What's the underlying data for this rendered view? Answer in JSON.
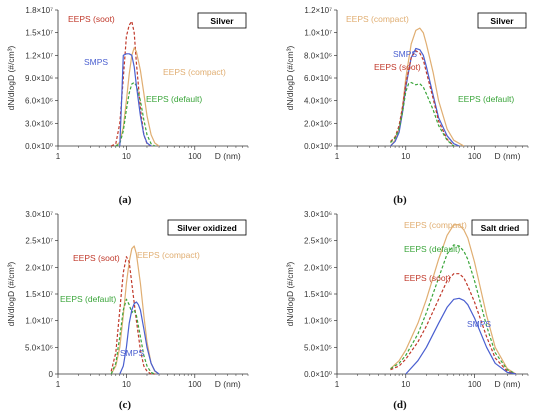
{
  "figure": {
    "colors": {
      "EEPS (soot)": "#c0392b",
      "EEPS (compact)": "#e0ae72",
      "EEPS (default)": "#3aa53a",
      "SMPS": "#4a5fd0"
    },
    "axis_color": "#333333"
  },
  "chart_data": [
    {
      "id": "a",
      "type": "line",
      "panel_label": "(a)",
      "title": "Silver",
      "xlabel": "D (nm)",
      "ylabel": "dN/dlogD (#/cm³)",
      "xscale": "log",
      "xlim": [
        1,
        600
      ],
      "ylim": [
        0,
        18000000
      ],
      "xticks": [
        {
          "v": 1,
          "label": "1"
        },
        {
          "v": 10,
          "label": "10"
        },
        {
          "v": 100,
          "label": "100"
        }
      ],
      "yticks": [
        {
          "v": 0,
          "label": "0.0×10⁰"
        },
        {
          "v": 3000000,
          "label": "3.0×10⁶"
        },
        {
          "v": 6000000,
          "label": "6.0×10⁶"
        },
        {
          "v": 9000000,
          "label": "9.0×10⁶"
        },
        {
          "v": 12000000,
          "label": "1.2×10⁷"
        },
        {
          "v": 15000000,
          "label": "1.5×10⁷"
        },
        {
          "v": 18000000,
          "label": "1.8×10⁷"
        }
      ],
      "series": [
        {
          "name": "EEPS (soot)",
          "dash": true,
          "x": [
            6,
            7,
            8,
            9,
            10,
            11,
            12,
            13,
            14,
            16,
            18,
            20,
            23
          ],
          "y": [
            0,
            300000,
            3000000,
            9000000,
            14500000,
            16000000,
            16500000,
            15000000,
            11000000,
            5000000,
            1500000,
            300000,
            0
          ]
        },
        {
          "name": "EEPS (compact)",
          "dash": false,
          "x": [
            7,
            8,
            9,
            10,
            11,
            12,
            13,
            14,
            16,
            18,
            20,
            23,
            26,
            30
          ],
          "y": [
            0,
            500000,
            2500000,
            6000000,
            9500000,
            12000000,
            13000000,
            12500000,
            10000000,
            7000000,
            4000000,
            1500000,
            400000,
            0
          ]
        },
        {
          "name": "EEPS (default)",
          "dash": true,
          "x": [
            7,
            8,
            9,
            10,
            11,
            12,
            13,
            14,
            16,
            18,
            20,
            23,
            26
          ],
          "y": [
            0,
            300000,
            2000000,
            4800000,
            7000000,
            8200000,
            8400000,
            8000000,
            6000000,
            3500000,
            1500000,
            300000,
            0
          ]
        },
        {
          "name": "SMPS",
          "dash": false,
          "x": [
            8,
            8.5,
            9,
            10,
            11,
            12,
            13,
            14,
            16,
            18,
            20,
            23
          ],
          "y": [
            0,
            6000000,
            12000000,
            12200000,
            12200000,
            12000000,
            10500000,
            8000000,
            4000000,
            1500000,
            400000,
            0
          ]
        }
      ],
      "annotations": [
        {
          "text": "EEPS (soot)",
          "series": "EEPS (soot)"
        },
        {
          "text": "SMPS",
          "series": "SMPS"
        },
        {
          "text": "EEPS (compact)",
          "series": "EEPS (compact)"
        },
        {
          "text": "EEPS (default)",
          "series": "EEPS (default)"
        }
      ]
    },
    {
      "id": "b",
      "type": "line",
      "panel_label": "(b)",
      "title": "Silver",
      "xlabel": "D (nm)",
      "ylabel": "dN/dlogD (#/cm³)",
      "xscale": "log",
      "xlim": [
        1,
        600
      ],
      "ylim": [
        0,
        12000000
      ],
      "xticks": [
        {
          "v": 1,
          "label": "1"
        },
        {
          "v": 10,
          "label": "10"
        },
        {
          "v": 100,
          "label": "100"
        }
      ],
      "yticks": [
        {
          "v": 0,
          "label": "0.0×10⁰"
        },
        {
          "v": 2000000,
          "label": "2.0×10⁶"
        },
        {
          "v": 4000000,
          "label": "4.0×10⁶"
        },
        {
          "v": 6000000,
          "label": "6.0×10⁶"
        },
        {
          "v": 8000000,
          "label": "8.0×10⁶"
        },
        {
          "v": 10000000,
          "label": "1.0×10⁷"
        },
        {
          "v": 12000000,
          "label": "1.2×10⁷"
        }
      ],
      "series": [
        {
          "name": "EEPS (compact)",
          "dash": false,
          "x": [
            6,
            7,
            8,
            9,
            10,
            12,
            14,
            16,
            18,
            20,
            25,
            30,
            40,
            50,
            70
          ],
          "y": [
            0,
            500000,
            1500000,
            3500000,
            6000000,
            9000000,
            10200000,
            10400000,
            10000000,
            9000000,
            6500000,
            4000000,
            1500000,
            500000,
            0
          ]
        },
        {
          "name": "SMPS",
          "dash": false,
          "x": [
            6,
            7,
            8,
            9,
            10,
            12,
            14,
            16,
            18,
            20,
            25,
            30,
            40,
            50,
            60
          ],
          "y": [
            0,
            400000,
            1200000,
            3000000,
            5200000,
            7800000,
            8600000,
            8500000,
            8000000,
            7000000,
            4500000,
            2500000,
            900000,
            200000,
            0
          ]
        },
        {
          "name": "EEPS (soot)",
          "dash": true,
          "x": [
            6,
            7,
            8,
            9,
            10,
            12,
            14,
            16,
            18,
            20,
            25,
            30,
            40,
            50
          ],
          "y": [
            400000,
            800000,
            1800000,
            3500000,
            5500000,
            7800000,
            8400000,
            8200000,
            7600000,
            6500000,
            4200000,
            2200000,
            600000,
            0
          ]
        },
        {
          "name": "EEPS (default)",
          "dash": true,
          "x": [
            6,
            7,
            8,
            9,
            10,
            11,
            12,
            14,
            16,
            18,
            20,
            25,
            30,
            40,
            50
          ],
          "y": [
            300000,
            700000,
            1500000,
            3000000,
            4800000,
            5500000,
            5600000,
            5400000,
            5500000,
            5200000,
            4600000,
            3200000,
            1800000,
            500000,
            0
          ]
        }
      ],
      "annotations": [
        {
          "text": "EEPS (compact)",
          "series": "EEPS (compact)"
        },
        {
          "text": "SMPS",
          "series": "SMPS"
        },
        {
          "text": "EEPS (soot)",
          "series": "EEPS (soot)"
        },
        {
          "text": "EEPS (default)",
          "series": "EEPS (default)"
        }
      ]
    },
    {
      "id": "c",
      "type": "line",
      "panel_label": "(c)",
      "title": "Silver oxidized",
      "xlabel": "D (nm)",
      "ylabel": "dN/dlogD (#/cm³)",
      "xscale": "log",
      "xlim": [
        1,
        600
      ],
      "ylim": [
        0,
        30000000
      ],
      "xticks": [
        {
          "v": 1,
          "label": "1"
        },
        {
          "v": 10,
          "label": "10"
        },
        {
          "v": 100,
          "label": "100"
        }
      ],
      "yticks": [
        {
          "v": 0,
          "label": "0"
        },
        {
          "v": 5000000,
          "label": "5.0×10⁶"
        },
        {
          "v": 10000000,
          "label": "1.0×10⁷"
        },
        {
          "v": 15000000,
          "label": "1.5×10⁷"
        },
        {
          "v": 20000000,
          "label": "2.0×10⁷"
        },
        {
          "v": 25000000,
          "label": "2.5×10⁷"
        },
        {
          "v": 30000000,
          "label": "3.0×10⁷"
        }
      ],
      "series": [
        {
          "name": "EEPS (compact)",
          "dash": false,
          "x": [
            6,
            7,
            8,
            9,
            10,
            11,
            12,
            13,
            14,
            16,
            18,
            20,
            23,
            26,
            30
          ],
          "y": [
            0,
            1500000,
            5000000,
            11000000,
            17000000,
            21000000,
            23500000,
            24000000,
            22500000,
            17000000,
            11000000,
            6000000,
            2000000,
            500000,
            0
          ]
        },
        {
          "name": "EEPS (soot)",
          "dash": true,
          "x": [
            6,
            7,
            8,
            9,
            10,
            11,
            12,
            14,
            16,
            18,
            20,
            23,
            26
          ],
          "y": [
            500000,
            4000000,
            12000000,
            19000000,
            22000000,
            21000000,
            17000000,
            10000000,
            4500000,
            1500000,
            500000,
            0,
            0
          ]
        },
        {
          "name": "EEPS (default)",
          "dash": true,
          "x": [
            6,
            7,
            8,
            9,
            10,
            11,
            12,
            13,
            14,
            16,
            18,
            20,
            23,
            26
          ],
          "y": [
            0,
            2000000,
            7000000,
            12000000,
            14000000,
            13000000,
            11500000,
            12000000,
            11000000,
            7000000,
            3500000,
            1500000,
            300000,
            0
          ]
        },
        {
          "name": "SMPS",
          "dash": false,
          "x": [
            8,
            9,
            10,
            11,
            12,
            13,
            14,
            15,
            16,
            18,
            20,
            23,
            26,
            30
          ],
          "y": [
            0,
            1500000,
            5000000,
            9500000,
            12000000,
            13200000,
            13500000,
            13000000,
            12000000,
            8500000,
            5000000,
            2000000,
            600000,
            0
          ]
        }
      ],
      "annotations": [
        {
          "text": "EEPS (soot)",
          "series": "EEPS (soot)"
        },
        {
          "text": "EEPS (compact)",
          "series": "EEPS (compact)"
        },
        {
          "text": "EEPS (default)",
          "series": "EEPS (default)"
        },
        {
          "text": "SMPS",
          "series": "SMPS"
        }
      ]
    },
    {
      "id": "d",
      "type": "line",
      "panel_label": "(d)",
      "title": "Salt dried",
      "xlabel": "D (nm)",
      "ylabel": "dN/dlogD (#/cm³)",
      "xscale": "log",
      "xlim": [
        1,
        600
      ],
      "ylim": [
        0,
        3000000
      ],
      "xticks": [
        {
          "v": 1,
          "label": "1"
        },
        {
          "v": 10,
          "label": "10"
        },
        {
          "v": 100,
          "label": "100"
        }
      ],
      "yticks": [
        {
          "v": 0,
          "label": "0.0×10⁰"
        },
        {
          "v": 500000,
          "label": "5.0×10⁵"
        },
        {
          "v": 1000000,
          "label": "1.0×10⁶"
        },
        {
          "v": 1500000,
          "label": "1.5×10⁶"
        },
        {
          "v": 2000000,
          "label": "2.0×10⁶"
        },
        {
          "v": 2500000,
          "label": "2.5×10⁶"
        },
        {
          "v": 3000000,
          "label": "3.0×10⁶"
        }
      ],
      "series": [
        {
          "name": "EEPS (compact)",
          "dash": false,
          "x": [
            6,
            8,
            10,
            15,
            20,
            30,
            40,
            50,
            60,
            70,
            80,
            100,
            150,
            200,
            300,
            400
          ],
          "y": [
            100000,
            250000,
            450000,
            950000,
            1400000,
            2150000,
            2600000,
            2800000,
            2800000,
            2700000,
            2550000,
            2100000,
            1100000,
            500000,
            100000,
            0
          ]
        },
        {
          "name": "EEPS (default)",
          "dash": true,
          "x": [
            6,
            8,
            10,
            15,
            20,
            30,
            40,
            50,
            60,
            70,
            80,
            100,
            150,
            200,
            300,
            400
          ],
          "y": [
            100000,
            200000,
            350000,
            750000,
            1150000,
            1800000,
            2250000,
            2420000,
            2400000,
            2300000,
            2150000,
            1750000,
            900000,
            400000,
            80000,
            0
          ]
        },
        {
          "name": "EEPS (soot)",
          "dash": true,
          "x": [
            6,
            8,
            10,
            15,
            20,
            30,
            40,
            50,
            60,
            70,
            80,
            100,
            150,
            200,
            300,
            400
          ],
          "y": [
            80000,
            150000,
            280000,
            600000,
            900000,
            1400000,
            1750000,
            1880000,
            1880000,
            1800000,
            1650000,
            1350000,
            700000,
            300000,
            50000,
            0
          ]
        },
        {
          "name": "SMPS",
          "dash": false,
          "x": [
            10,
            15,
            20,
            30,
            40,
            50,
            60,
            70,
            80,
            100,
            150,
            200,
            300,
            400
          ],
          "y": [
            0,
            250000,
            500000,
            950000,
            1250000,
            1400000,
            1420000,
            1380000,
            1300000,
            1050000,
            500000,
            200000,
            30000,
            0
          ]
        }
      ],
      "annotations": [
        {
          "text": "EEPS (compact)",
          "series": "EEPS (compact)"
        },
        {
          "text": "EEPS (default)",
          "series": "EEPS (default)"
        },
        {
          "text": "EEPS (soot)",
          "series": "EEPS (soot)"
        },
        {
          "text": "SMPS",
          "series": "SMPS"
        }
      ]
    }
  ]
}
